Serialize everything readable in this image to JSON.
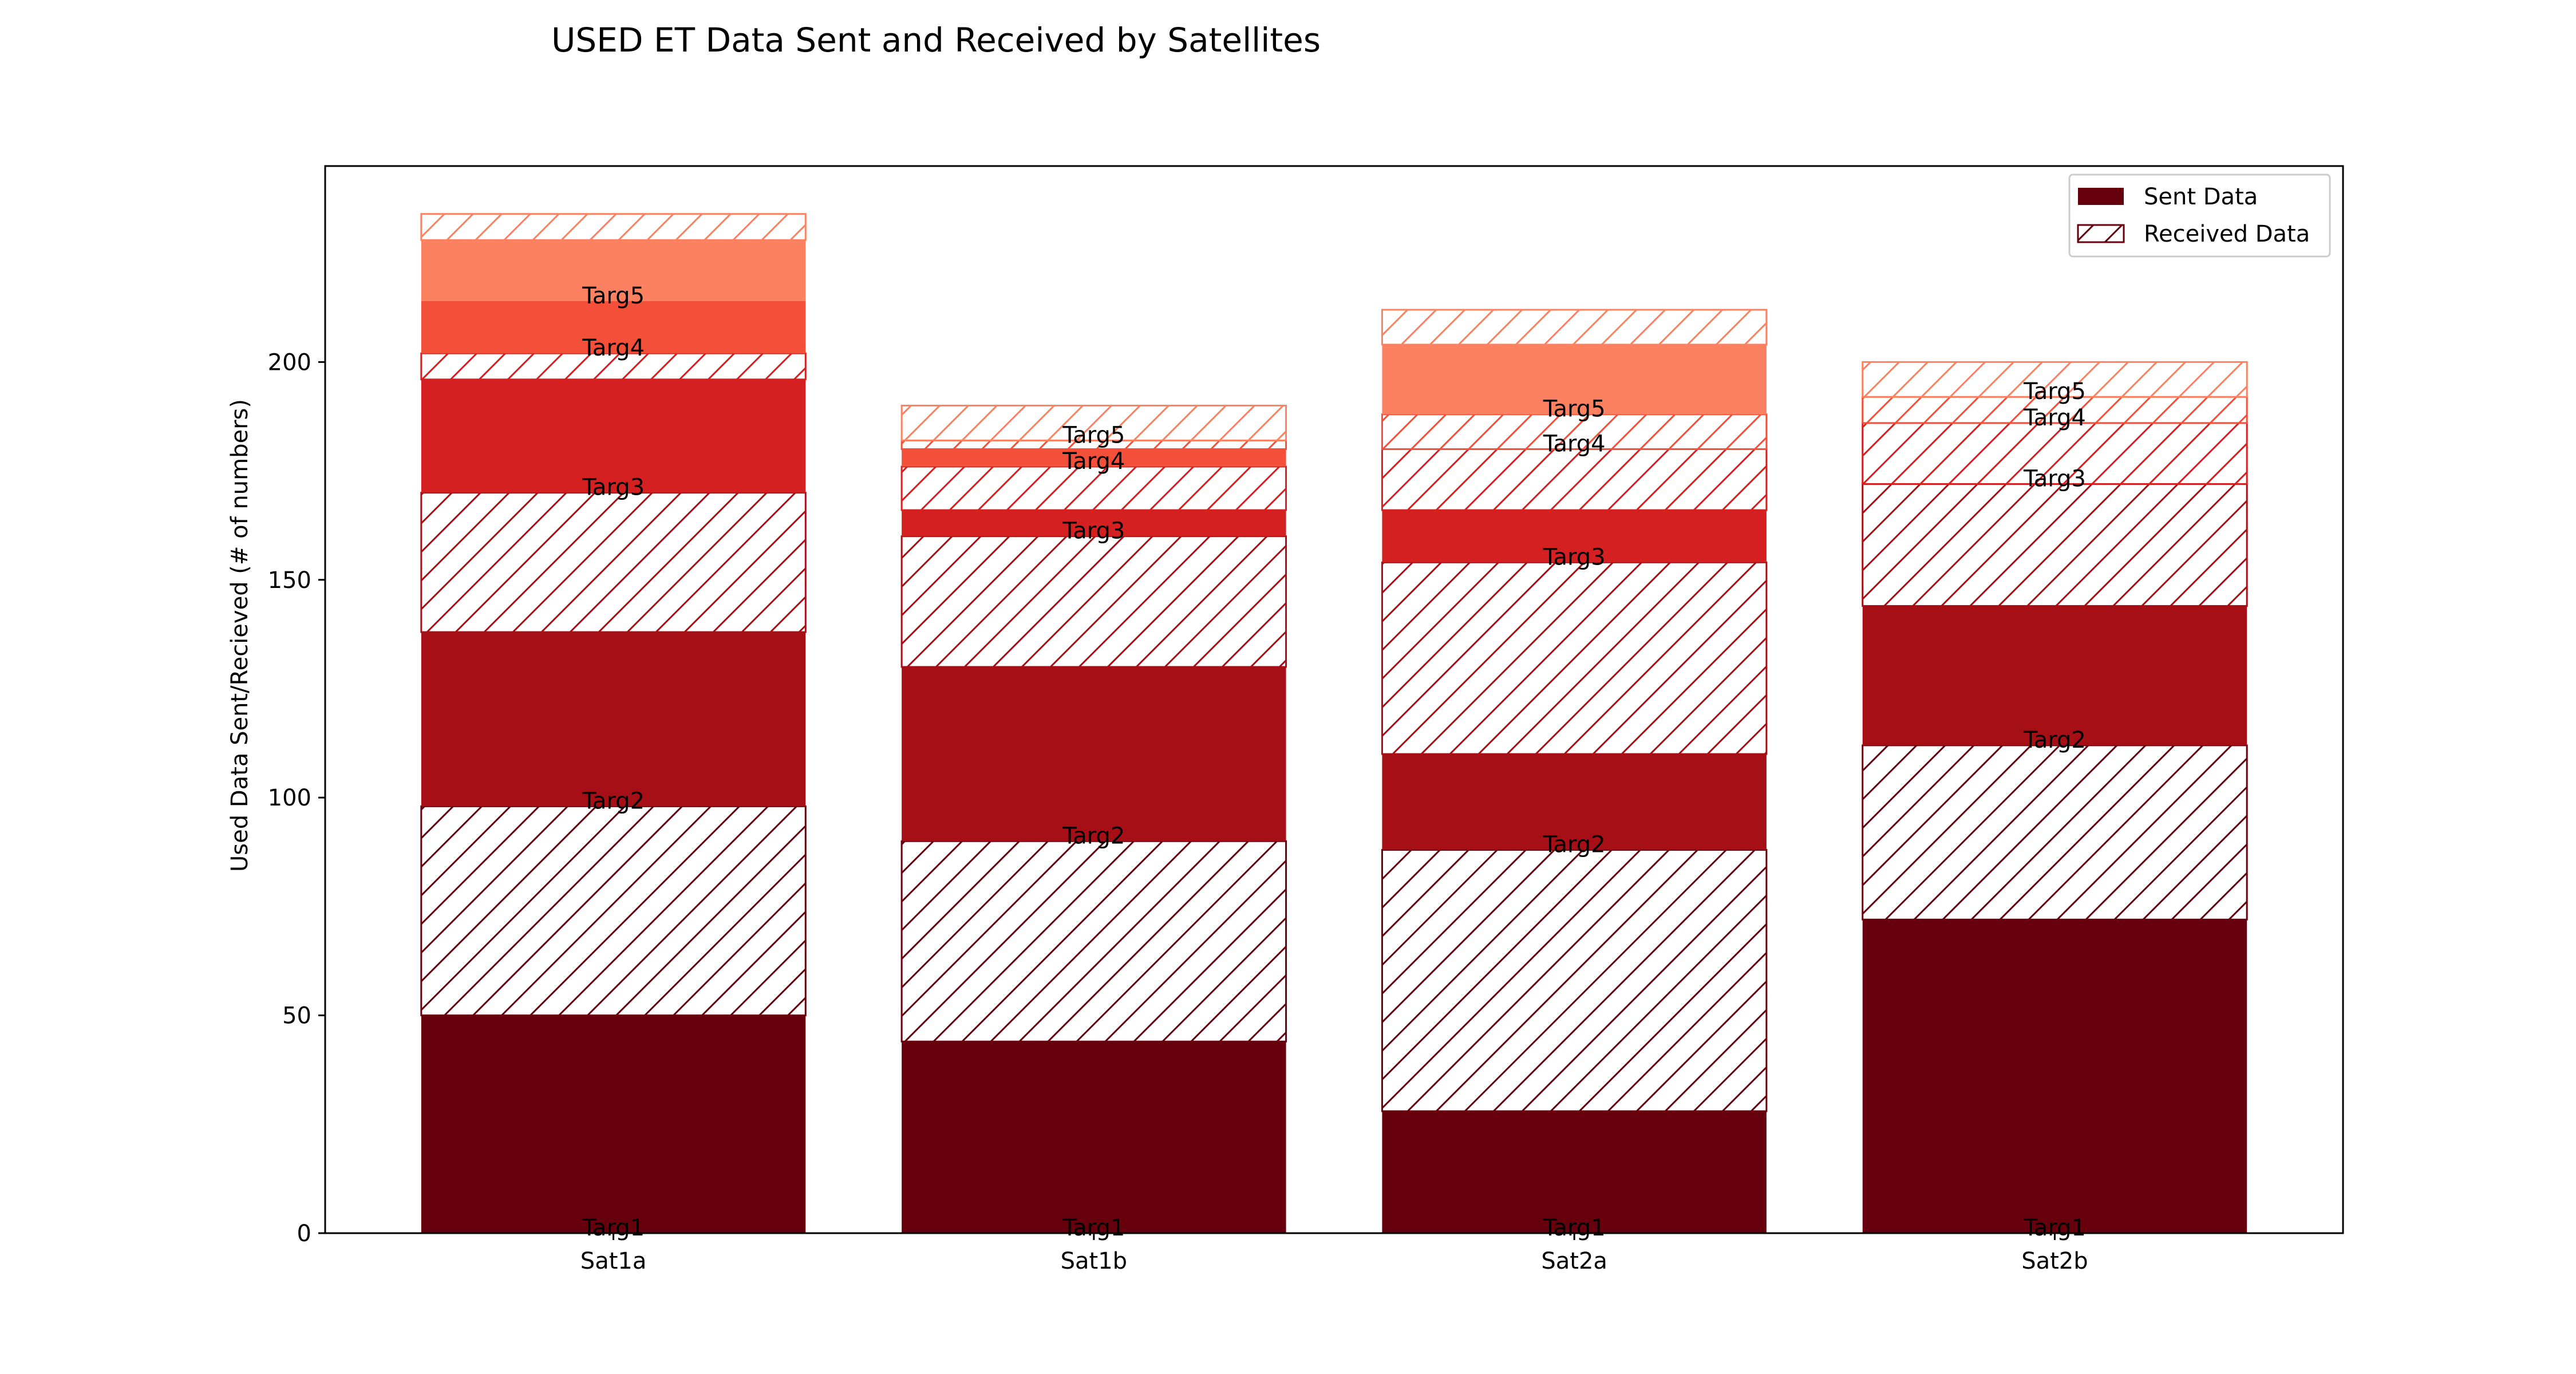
{
  "chart_data": {
    "type": "bar",
    "stacked": true,
    "title": "USED ET Data Sent and Received by Satellites",
    "xlabel": "",
    "ylabel": "Used Data Sent/Recieved (# of numbers)",
    "ylim": [
      0,
      245
    ],
    "yticks": [
      0,
      50,
      100,
      150,
      200
    ],
    "categories": [
      "Sat1a",
      "Sat1b",
      "Sat2a",
      "Sat2b"
    ],
    "targets": [
      "Targ1",
      "Targ2",
      "Targ3",
      "Targ4",
      "Targ5"
    ],
    "target_colors": [
      "#67000d",
      "#a50f15",
      "#d42020",
      "#f44f39",
      "#fc8161"
    ],
    "legend": {
      "position": "top-right",
      "entries": [
        {
          "label": "Sent Data",
          "style": "solid"
        },
        {
          "label": "Received Data",
          "style": "hatched"
        }
      ]
    },
    "grid": false,
    "series": [
      {
        "category": "Sat1a",
        "targets": [
          {
            "name": "Targ1",
            "sent": 50,
            "received": 48
          },
          {
            "name": "Targ2",
            "sent": 40,
            "received": 32
          },
          {
            "name": "Targ3",
            "sent": 26,
            "received": 6
          },
          {
            "name": "Targ4",
            "sent": 12,
            "received": 0
          },
          {
            "name": "Targ5",
            "sent": 14,
            "received": 6
          }
        ]
      },
      {
        "category": "Sat1b",
        "targets": [
          {
            "name": "Targ1",
            "sent": 44,
            "received": 46
          },
          {
            "name": "Targ2",
            "sent": 40,
            "received": 30
          },
          {
            "name": "Targ3",
            "sent": 6,
            "received": 10
          },
          {
            "name": "Targ4",
            "sent": 4,
            "received": 2
          },
          {
            "name": "Targ5",
            "sent": 0,
            "received": 8
          }
        ]
      },
      {
        "category": "Sat2a",
        "targets": [
          {
            "name": "Targ1",
            "sent": 28,
            "received": 60
          },
          {
            "name": "Targ2",
            "sent": 22,
            "received": 44
          },
          {
            "name": "Targ3",
            "sent": 12,
            "received": 14
          },
          {
            "name": "Targ4",
            "sent": 0,
            "received": 8
          },
          {
            "name": "Targ5",
            "sent": 16,
            "received": 8
          }
        ]
      },
      {
        "category": "Sat2b",
        "targets": [
          {
            "name": "Targ1",
            "sent": 72,
            "received": 40
          },
          {
            "name": "Targ2",
            "sent": 32,
            "received": 28
          },
          {
            "name": "Targ3",
            "sent": 0,
            "received": 14
          },
          {
            "name": "Targ4",
            "sent": 0,
            "received": 6
          },
          {
            "name": "Targ5",
            "sent": 0,
            "received": 8
          }
        ]
      }
    ]
  }
}
